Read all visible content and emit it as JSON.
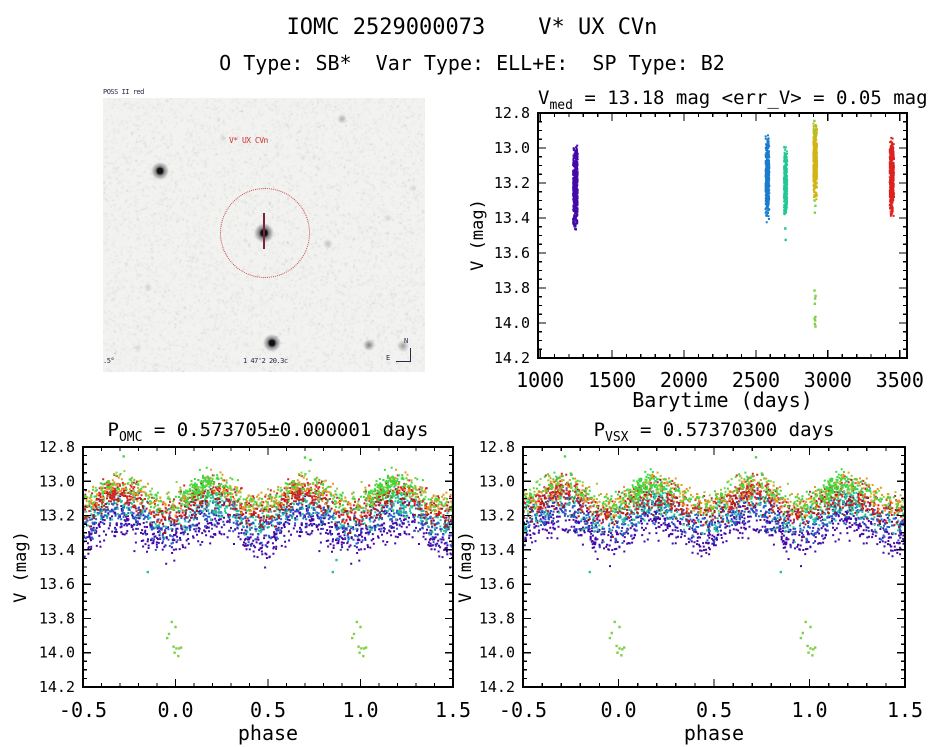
{
  "page": {
    "title": "IOMC 2529000073    V* UX CVn",
    "subtitle": "O Type: SB*  Var Type: ELL+E:  SP Type: B2"
  },
  "finding_chart": {
    "survey_label": "POSS II red",
    "star_label": "V* UX CVn",
    "coord_label": "1 47'2 20.3c",
    "fov_label": ".5°",
    "compass_north": "N",
    "compass_east": "E",
    "circle_color": "#cc4444",
    "marker_color": "#7a2040",
    "star_label_color": "#cc3333"
  },
  "plots": {
    "timeseries": {
      "title_pre": "V",
      "title_sub": "med",
      "title_post": " = 13.18 mag <err_V> = 0.05 mag",
      "xlabel": "Barytime (days)",
      "ylabel": "V (mag)"
    },
    "phase_omc": {
      "title_pre": "P",
      "title_sub": "OMC",
      "title_post": " = 0.573705±0.000001 days",
      "xlabel": "phase",
      "ylabel": "V (mag)"
    },
    "phase_vsx": {
      "title_pre": "P",
      "title_sub": "VSX",
      "title_post": " = 0.57370300 days",
      "xlabel": "phase",
      "ylabel": "V (mag)"
    }
  },
  "chart_data": [
    {
      "id": "timeseries",
      "type": "scatter",
      "seed": 7,
      "title": "V_med = 13.18 mag <err_V> = 0.05 mag",
      "xlabel": "Barytime (days)",
      "ylabel": "V (mag)",
      "xlim": [
        985,
        3550
      ],
      "ylim": [
        12.8,
        14.2
      ],
      "y_axis_reversed_mag": true,
      "xticks": [
        1000,
        1500,
        2000,
        2500,
        3000,
        3500
      ],
      "xtick_labels": [
        "1000",
        "1500",
        "2000",
        "2500",
        "3000",
        "3500"
      ],
      "yticks": [
        12.8,
        13.0,
        13.2,
        13.4,
        13.6,
        13.8,
        14.0,
        14.2
      ],
      "ytick_labels": [
        "12.8",
        "13.0",
        "13.2",
        "13.4",
        "13.6",
        "13.8",
        "14.0",
        "14.2"
      ],
      "xminor": 100,
      "yminor": 0.05,
      "grid": false,
      "legend": false,
      "clusters": [
        {
          "name": "epoch-1",
          "color": "#4408a8",
          "x": 1245,
          "halfwidth": 16,
          "vmin": 12.97,
          "vmax": 13.48,
          "n": 520
        },
        {
          "name": "epoch-2",
          "color": "#1b7ccc",
          "x": 2580,
          "halfwidth": 13,
          "vmin": 12.92,
          "vmax": 13.43,
          "n": 360
        },
        {
          "name": "epoch-3",
          "color": "#22c894",
          "x": 2706,
          "halfwidth": 11,
          "vmin": 12.99,
          "vmax": 13.4,
          "n": 300
        },
        {
          "name": "epoch-4",
          "color": "#d2b414",
          "x": 2912,
          "halfwidth": 13,
          "vmin": 12.84,
          "vmax": 13.31,
          "n": 430
        },
        {
          "name": "epoch-5",
          "color": "#dd2020",
          "x": 3445,
          "halfwidth": 15,
          "vmin": 12.93,
          "vmax": 13.41,
          "n": 380
        }
      ],
      "outliers": [
        {
          "color": "#7ed045",
          "points": [
            [
              2906,
              12.845
            ],
            [
              2914,
              12.87
            ],
            [
              2910,
              12.9
            ],
            [
              2916,
              12.93
            ],
            [
              2908,
              13.3
            ],
            [
              2913,
              13.33
            ],
            [
              2910,
              13.37
            ],
            [
              2907,
              13.815
            ],
            [
              2915,
              13.845
            ],
            [
              2911,
              13.86
            ],
            [
              2909,
              13.89
            ],
            [
              2913,
              13.965
            ],
            [
              2908,
              13.975
            ],
            [
              2912,
              13.985
            ],
            [
              2910,
              14.005
            ],
            [
              2914,
              14.02
            ]
          ]
        },
        {
          "color": "#22c894",
          "points": [
            [
              2704,
              13.46
            ],
            [
              2707,
              13.525
            ]
          ]
        }
      ]
    },
    {
      "id": "phase_omc",
      "type": "scatter",
      "seed": 42,
      "title": "P_OMC = 0.573705±0.000001 days",
      "xlabel": "phase",
      "ylabel": "V (mag)",
      "xlim": [
        -0.5,
        1.5
      ],
      "ylim": [
        12.8,
        14.2
      ],
      "y_axis_reversed_mag": true,
      "xticks": [
        -0.5,
        0.0,
        0.5,
        1.0,
        1.5
      ],
      "xtick_labels": [
        "-0.5",
        "0.0",
        "0.5",
        "1.0",
        "1.5"
      ],
      "yticks": [
        12.8,
        13.0,
        13.2,
        13.4,
        13.6,
        13.8,
        14.0,
        14.2
      ],
      "ytick_labels": [
        "12.8",
        "13.0",
        "13.2",
        "13.4",
        "13.6",
        "13.8",
        "14.0",
        "14.2"
      ],
      "xminor": 0.1,
      "yminor": 0.05,
      "grid": false,
      "legend": false,
      "model": {
        "amplitude": 0.06,
        "phase_of_max_mag": 0.45
      },
      "series": [
        {
          "name": "s-purple",
          "color": "#4408a8",
          "offset": 13.285,
          "sigma": 0.055,
          "n": 420
        },
        {
          "name": "s-blue",
          "color": "#2060c8",
          "offset": 13.215,
          "sigma": 0.05,
          "n": 300
        },
        {
          "name": "s-teal",
          "color": "#22c894",
          "offset": 13.17,
          "sigma": 0.048,
          "n": 260,
          "clump": {
            "center": 0.22,
            "sigma": 0.045,
            "frac": 0.25
          }
        },
        {
          "name": "s-darkred",
          "color": "#a81818",
          "offset": 13.15,
          "sigma": 0.04,
          "n": 200
        },
        {
          "name": "s-red",
          "color": "#dd2020",
          "offset": 13.115,
          "sigma": 0.04,
          "n": 280,
          "clump": {
            "center": 0.68,
            "sigma": 0.05,
            "frac": 0.2
          }
        },
        {
          "name": "s-orange",
          "color": "#e89820",
          "offset": 13.08,
          "sigma": 0.036,
          "n": 190
        },
        {
          "name": "s-green",
          "color": "#3fd83f",
          "offset": 13.07,
          "sigma": 0.035,
          "n": 260,
          "clump": {
            "center": 0.12,
            "sigma": 0.055,
            "frac": 0.35
          }
        },
        {
          "name": "s-lightgreen",
          "color": "#8cd03c",
          "offset": 13.07,
          "sigma": 0.04,
          "n": 60
        }
      ],
      "outliers": [
        {
          "color": "#7ed045",
          "alias": true,
          "points": [
            [
              -0.02,
              13.82
            ],
            [
              0.0,
              13.85
            ],
            [
              -0.035,
              13.89
            ],
            [
              -0.045,
              13.915
            ],
            [
              -0.01,
              13.965
            ],
            [
              0.005,
              13.975
            ],
            [
              0.02,
              13.975
            ],
            [
              -0.005,
              14.0
            ],
            [
              0.015,
              14.02
            ],
            [
              0.03,
              13.97
            ]
          ]
        },
        {
          "color": "#22c894",
          "alias": false,
          "points": [
            [
              -0.15,
              13.53
            ],
            [
              0.85,
              13.53
            ],
            [
              0.87,
              13.46
            ]
          ]
        },
        {
          "color": "#3fd83f",
          "alias": false,
          "points": [
            [
              -0.28,
              12.855
            ],
            [
              0.7,
              12.862
            ],
            [
              0.73,
              12.875
            ]
          ]
        }
      ]
    },
    {
      "id": "phase_vsx",
      "type": "scatter",
      "seed": 1337,
      "title": "P_VSX = 0.57370300 days",
      "xlabel": "phase",
      "ylabel": "V (mag)",
      "xlim": [
        -0.5,
        1.5
      ],
      "ylim": [
        12.8,
        14.2
      ],
      "y_axis_reversed_mag": true,
      "xticks": [
        -0.5,
        0.0,
        0.5,
        1.0,
        1.5
      ],
      "xtick_labels": [
        "-0.5",
        "0.0",
        "0.5",
        "1.0",
        "1.5"
      ],
      "yticks": [
        12.8,
        13.0,
        13.2,
        13.4,
        13.6,
        13.8,
        14.0,
        14.2
      ],
      "ytick_labels": [
        "12.8",
        "13.0",
        "13.2",
        "13.4",
        "13.6",
        "13.8",
        "14.0",
        "14.2"
      ],
      "xminor": 0.1,
      "yminor": 0.05,
      "grid": false,
      "legend": false,
      "model": {
        "amplitude": 0.06,
        "phase_of_max_mag": 0.45
      },
      "series": [
        {
          "name": "s-purple",
          "color": "#4408a8",
          "offset": 13.285,
          "sigma": 0.055,
          "n": 420
        },
        {
          "name": "s-blue",
          "color": "#2060c8",
          "offset": 13.215,
          "sigma": 0.05,
          "n": 300
        },
        {
          "name": "s-teal",
          "color": "#22c894",
          "offset": 13.17,
          "sigma": 0.048,
          "n": 260,
          "clump": {
            "center": 0.22,
            "sigma": 0.045,
            "frac": 0.25
          }
        },
        {
          "name": "s-darkred",
          "color": "#a81818",
          "offset": 13.15,
          "sigma": 0.04,
          "n": 200
        },
        {
          "name": "s-red",
          "color": "#dd2020",
          "offset": 13.115,
          "sigma": 0.04,
          "n": 280,
          "clump": {
            "center": 0.68,
            "sigma": 0.05,
            "frac": 0.2
          }
        },
        {
          "name": "s-orange",
          "color": "#e89820",
          "offset": 13.08,
          "sigma": 0.036,
          "n": 190
        },
        {
          "name": "s-green",
          "color": "#3fd83f",
          "offset": 13.07,
          "sigma": 0.035,
          "n": 260,
          "clump": {
            "center": 0.12,
            "sigma": 0.055,
            "frac": 0.35
          }
        },
        {
          "name": "s-lightgreen",
          "color": "#8cd03c",
          "offset": 13.07,
          "sigma": 0.04,
          "n": 60
        }
      ],
      "outliers": [
        {
          "color": "#7ed045",
          "alias": true,
          "points": [
            [
              -0.02,
              13.82
            ],
            [
              0.005,
              13.85
            ],
            [
              -0.035,
              13.885
            ],
            [
              -0.045,
              13.915
            ],
            [
              -0.01,
              13.96
            ],
            [
              0.005,
              13.975
            ],
            [
              0.02,
              13.98
            ],
            [
              -0.005,
              14.0
            ],
            [
              0.015,
              14.015
            ],
            [
              0.03,
              13.97
            ]
          ]
        },
        {
          "color": "#22c894",
          "alias": false,
          "points": [
            [
              -0.15,
              13.53
            ],
            [
              0.85,
              13.53
            ]
          ]
        },
        {
          "color": "#3fd83f",
          "alias": false,
          "points": [
            [
              -0.28,
              12.855
            ],
            [
              0.72,
              12.86
            ]
          ]
        }
      ]
    }
  ]
}
